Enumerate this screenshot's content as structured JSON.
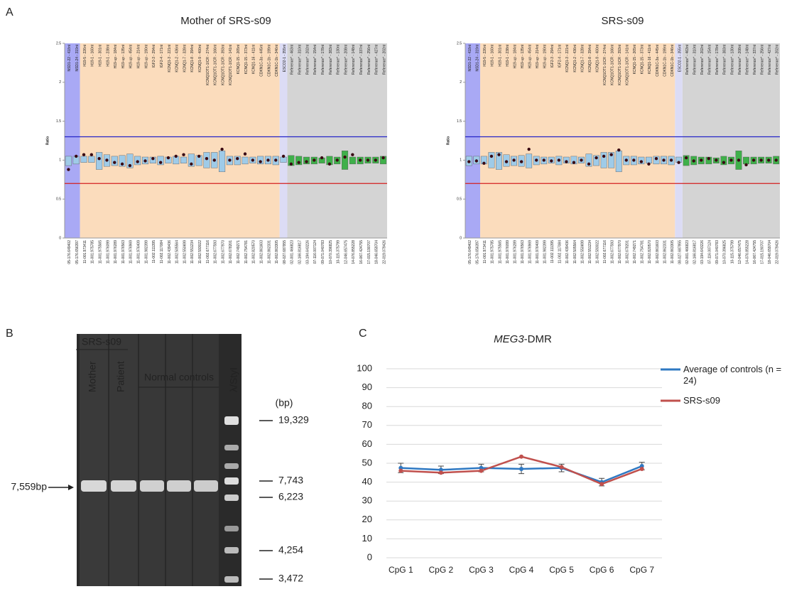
{
  "panel_labels": [
    "A",
    "B",
    "C"
  ],
  "mlpa_probes": {
    "names": [
      "NSD1-22 - 418nt",
      "NSD1-24 - 319nt",
      "H19-5 - 226nt",
      "H19-1 - 160nt",
      "H19-1 - 301nt",
      "H19-1 - 238nt",
      "H19-up - 184nt",
      "H19-up - 135nt",
      "H19-up - 454nt",
      "H19-up - 214nt",
      "H19-up - 190nt",
      "IGF2-3 - 294nt",
      "IGF2-4 - 171nt",
      "KCNQ1-3 - 221nt",
      "KCNQ1-2 - 436nt",
      "KCNQ1-7 - 328nt",
      "KCNQ1-8 - 394nt",
      "KCNQ1-9 - 400nt",
      "KCNQ1OT1-1ICR - 274nt",
      "KCNQ1OT1-1ICR - 166nt",
      "KCNQ1OT1-1ICR - 393nt",
      "KCNQ1OT1-1ICR - 141nt",
      "KCNQ1-15 - 265nt",
      "KCNQ1-15 - 373nt",
      "KCNQ1-16 - 411nt",
      "CDKN1C-3a - 445nt",
      "CDKN1C-1b - 199nt",
      "CDKN1C-1b - 346nt",
      "ESCO2-1 - 355nt",
      "Reference* - 463nt",
      "Reference* - 310nt",
      "Reference* - 202nt",
      "Reference* - 154nt",
      "Reference* - 178nt",
      "Reference* - 383nt",
      "Reference* - 130nt",
      "Reference* - 208nt",
      "Reference* - 148nt",
      "Reference* - 337nt",
      "Reference* - 256nt",
      "Reference* - 427nt",
      "Reference* - 202nt"
    ],
    "positions": [
      "05-176.649402",
      "05-176.656397",
      "11-001.973411",
      "11-001.975785",
      "11-001.975565",
      "11-001.976099",
      "11-001.976289",
      "11-001.976563",
      "11-001.976969",
      "11-001.976409",
      "11-001.982399",
      "11-002.111395",
      "11-002.117084",
      "11-002.439436",
      "11-002.505564",
      "11-002.550699",
      "11-002.551234",
      "11-002.593022",
      "11-002.677116",
      "11-002.677593",
      "11-002.677970",
      "11-002.678201",
      "11-002.749271",
      "11-002.754781",
      "11-002.820570",
      "11-002.861603",
      "11-002.862331",
      "11-002.863305",
      "08-027.687955",
      "02-001.466823",
      "02-166.816817",
      "03-194.643226",
      "07-116.007124",
      "09-071.040783",
      "10-070.396825",
      "10-115.375799",
      "12-046.657475",
      "14-076.855228",
      "16-067.424755",
      "17-015.190707",
      "18-046.659704",
      "22-019.079426"
    ]
  },
  "chart_data": [
    {
      "type": "box",
      "title": "Mother of SRS-s09",
      "y_label": "Ratio",
      "ylim": [
        0,
        2.5
      ],
      "yticks": [
        0,
        0.5,
        1,
        1.5,
        2,
        2.5
      ],
      "box_color": "#9fcbe8",
      "reference_color": "#3fb04a",
      "dot_color": "#3a0a14",
      "thresholds": [
        {
          "value": 1.3,
          "color": "#2424c8"
        },
        {
          "value": 0.7,
          "color": "#d42020"
        }
      ],
      "values": [
        0.88,
        1.05,
        1.07,
        1.07,
        1.02,
        1.0,
        0.97,
        0.95,
        0.93,
        0.98,
        0.99,
        1.02,
        0.97,
        1.03,
        1.05,
        1.07,
        0.95,
        1.05,
        1.02,
        1.0,
        1.14,
        1.0,
        1.02,
        1.08,
        1.0,
        0.98,
        1.0,
        1.0,
        1.05,
        0.95,
        0.97,
        0.98,
        1.0,
        1.03,
        0.95,
        1.0,
        1.04,
        1.07,
        1.0,
        1.0,
        1.0,
        1.03
      ],
      "box_low": [
        0.93,
        0.95,
        0.97,
        0.97,
        0.88,
        0.92,
        0.93,
        0.92,
        0.9,
        0.94,
        0.95,
        0.96,
        0.94,
        0.96,
        0.95,
        0.96,
        0.92,
        0.93,
        0.9,
        0.9,
        0.85,
        0.94,
        0.94,
        0.95,
        0.96,
        0.95,
        0.95,
        0.94,
        0.97,
        0.93,
        0.94,
        0.95,
        0.95,
        0.96,
        0.94,
        0.95,
        0.88,
        0.95,
        0.95,
        0.96,
        0.96,
        0.95
      ],
      "box_high": [
        1.05,
        1.05,
        1.05,
        1.05,
        1.1,
        1.07,
        1.05,
        1.06,
        1.08,
        1.05,
        1.04,
        1.04,
        1.05,
        1.04,
        1.05,
        1.04,
        1.08,
        1.06,
        1.1,
        1.1,
        1.12,
        1.05,
        1.05,
        1.04,
        1.04,
        1.05,
        1.05,
        1.05,
        1.04,
        1.06,
        1.05,
        1.04,
        1.04,
        1.03,
        1.05,
        1.04,
        1.12,
        1.04,
        1.04,
        1.04,
        1.04,
        1.05
      ]
    },
    {
      "type": "box",
      "title": "SRS-s09",
      "y_label": "Ratio",
      "ylim": [
        0,
        2.5
      ],
      "yticks": [
        0,
        0.5,
        1,
        1.5,
        2,
        2.5
      ],
      "box_color": "#9fcbe8",
      "reference_color": "#3fb04a",
      "dot_color": "#3a0a14",
      "thresholds": [
        {
          "value": 1.3,
          "color": "#2424c8"
        },
        {
          "value": 0.7,
          "color": "#d42020"
        }
      ],
      "values": [
        0.98,
        0.99,
        0.96,
        1.05,
        1.07,
        0.98,
        1.0,
        0.98,
        1.14,
        1.0,
        1.0,
        0.99,
        1.0,
        0.98,
        0.97,
        1.0,
        0.95,
        1.03,
        1.05,
        1.07,
        1.13,
        1.0,
        1.0,
        0.98,
        0.95,
        1.02,
        1.0,
        1.0,
        0.97,
        1.03,
        0.99,
        1.0,
        1.02,
        1.0,
        0.97,
        1.0,
        1.0,
        0.94,
        1.0,
        1.0,
        1.0,
        1.0
      ],
      "box_low": [
        0.93,
        0.95,
        0.95,
        0.9,
        0.88,
        0.92,
        0.93,
        0.92,
        0.9,
        0.94,
        0.95,
        0.96,
        0.94,
        0.96,
        0.95,
        0.96,
        0.92,
        0.93,
        0.9,
        0.9,
        0.85,
        0.94,
        0.94,
        0.95,
        0.96,
        0.95,
        0.95,
        0.94,
        0.97,
        0.93,
        0.94,
        0.95,
        0.95,
        0.96,
        0.94,
        0.95,
        0.88,
        0.95,
        0.95,
        0.96,
        0.96,
        0.95
      ],
      "box_high": [
        1.05,
        1.05,
        1.05,
        1.1,
        1.1,
        1.07,
        1.05,
        1.06,
        1.08,
        1.05,
        1.04,
        1.04,
        1.05,
        1.04,
        1.05,
        1.04,
        1.08,
        1.06,
        1.1,
        1.1,
        1.12,
        1.05,
        1.05,
        1.04,
        1.04,
        1.05,
        1.05,
        1.05,
        1.04,
        1.06,
        1.05,
        1.04,
        1.04,
        1.03,
        1.05,
        1.04,
        1.12,
        1.04,
        1.04,
        1.04,
        1.04,
        1.05
      ]
    },
    {
      "type": "line",
      "title": [
        "MEG3",
        "-DMR"
      ],
      "categories": [
        "CpG 1",
        "CpG 2",
        "CpG 3",
        "CpG 4",
        "CpG 5",
        "CpG 6",
        "CpG 7"
      ],
      "ylim": [
        0,
        100
      ],
      "yticks": [
        0,
        10,
        20,
        30,
        40,
        50,
        60,
        70,
        80,
        90,
        100
      ],
      "grid": true,
      "series": [
        {
          "name": "Average of controls (n = 24)",
          "color": "#2e78c2",
          "values": [
            47.5,
            46.5,
            47.5,
            47,
            47.5,
            40,
            48.5
          ],
          "errors": [
            2.5,
            2,
            2,
            2.5,
            2,
            2,
            2
          ]
        },
        {
          "name": "SRS-s09",
          "color": "#c0504d",
          "values": [
            46,
            45,
            46,
            53.5,
            48,
            39,
            47
          ]
        }
      ]
    }
  ],
  "gel": {
    "group_label": "SRS-s09",
    "lanes": [
      "Mother",
      "Patient"
    ],
    "controls_label": "Normal controls",
    "marker_label": "λ/StyI",
    "unit": "(bp)",
    "marker_sizes": [
      "19,329",
      "7,743",
      "6,223",
      "4,254",
      "3,472"
    ],
    "band_label": "7,559bp"
  }
}
